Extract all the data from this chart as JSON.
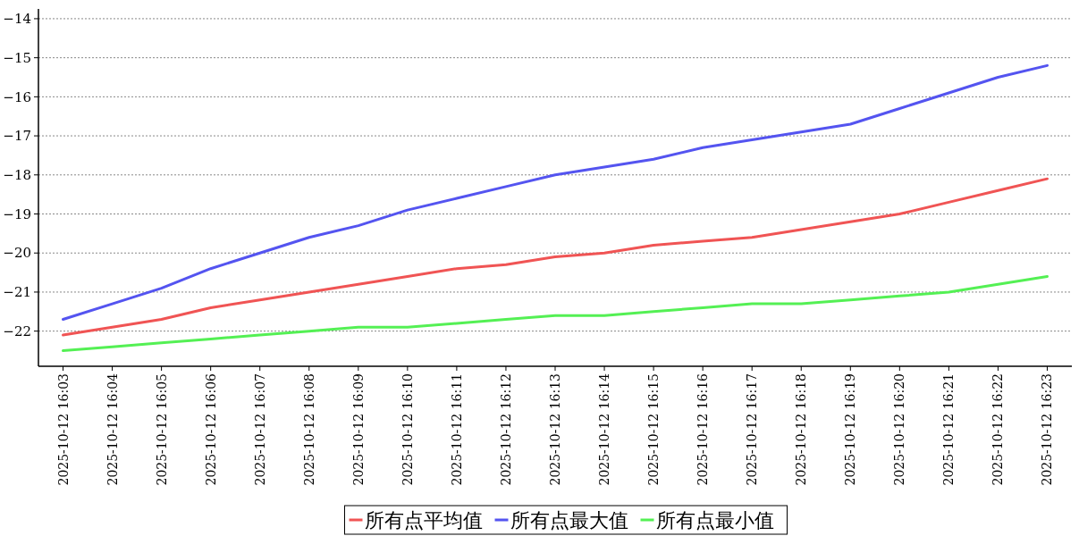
{
  "chart_data": {
    "type": "line",
    "categories": [
      "2025-10-12 16:03",
      "2025-10-12 16:04",
      "2025-10-12 16:05",
      "2025-10-12 16:06",
      "2025-10-12 16:07",
      "2025-10-12 16:08",
      "2025-10-12 16:09",
      "2025-10-12 16:10",
      "2025-10-12 16:11",
      "2025-10-12 16:12",
      "2025-10-12 16:13",
      "2025-10-12 16:14",
      "2025-10-12 16:15",
      "2025-10-12 16:16",
      "2025-10-12 16:17",
      "2025-10-12 16:18",
      "2025-10-12 16:19",
      "2025-10-12 16:20",
      "2025-10-12 16:21",
      "2025-10-12 16:22",
      "2025-10-12 16:23"
    ],
    "series": [
      {
        "name": "所有点平均值",
        "color": "#f05454",
        "values": [
          -22.1,
          -21.9,
          -21.7,
          -21.4,
          -21.2,
          -21.0,
          -20.8,
          -20.6,
          -20.4,
          -20.3,
          -20.1,
          -20.0,
          -19.8,
          -19.7,
          -19.6,
          -19.4,
          -19.2,
          -19.0,
          -18.7,
          -18.4,
          -18.1
        ]
      },
      {
        "name": "所有点最大值",
        "color": "#5454f0",
        "values": [
          -21.7,
          -21.3,
          -20.9,
          -20.4,
          -20.0,
          -19.6,
          -19.3,
          -18.9,
          -18.6,
          -18.3,
          -18.0,
          -17.8,
          -17.6,
          -17.3,
          -17.1,
          -16.9,
          -16.7,
          -16.3,
          -15.9,
          -15.5,
          -15.2
        ]
      },
      {
        "name": "所有点最小值",
        "color": "#54f054",
        "values": [
          -22.5,
          -22.4,
          -22.3,
          -22.2,
          -22.1,
          -22.0,
          -21.9,
          -21.9,
          -21.8,
          -21.7,
          -21.6,
          -21.6,
          -21.5,
          -21.4,
          -21.3,
          -21.3,
          -21.2,
          -21.1,
          -21.0,
          -20.8,
          -20.6
        ]
      }
    ],
    "ylim": [
      -22.9,
      -13.75
    ],
    "yticks": [
      -22,
      -21,
      -20,
      -19,
      -18,
      -17,
      -16,
      -15,
      -14
    ],
    "grid": "y",
    "legend": "bottom",
    "line_style": "solid",
    "marker": "none"
  }
}
